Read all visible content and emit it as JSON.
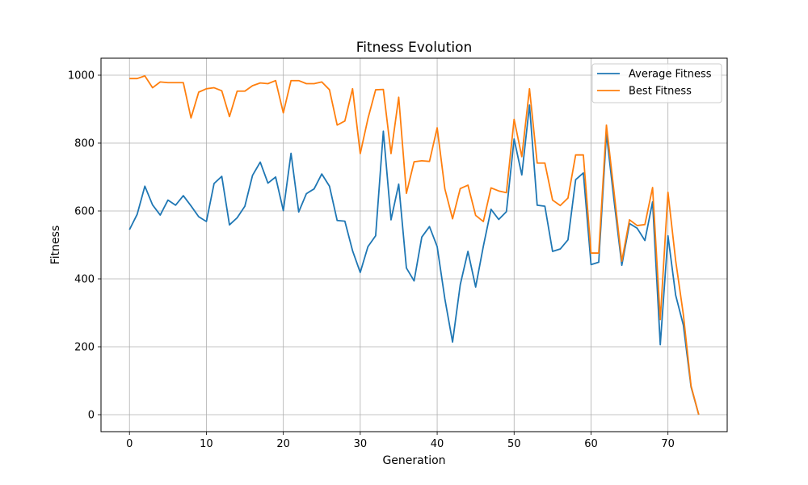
{
  "chart_data": {
    "type": "line",
    "title": "Fitness Evolution",
    "xlabel": "Generation",
    "ylabel": "Fitness",
    "xlim": [
      -3.7,
      77.7
    ],
    "ylim": [
      -50,
      1050
    ],
    "xticks": [
      0,
      10,
      20,
      30,
      40,
      50,
      60,
      70
    ],
    "yticks": [
      0,
      200,
      400,
      600,
      800,
      1000
    ],
    "grid": true,
    "legend_position": "top-right",
    "x": [
      0,
      1,
      2,
      3,
      4,
      5,
      6,
      7,
      8,
      9,
      10,
      11,
      12,
      13,
      14,
      15,
      16,
      17,
      18,
      19,
      20,
      21,
      22,
      23,
      24,
      25,
      26,
      27,
      28,
      29,
      30,
      31,
      32,
      33,
      34,
      35,
      36,
      37,
      38,
      39,
      40,
      41,
      42,
      43,
      44,
      45,
      46,
      47,
      48,
      49,
      50,
      51,
      52,
      53,
      54,
      55,
      56,
      57,
      58,
      59,
      60,
      61,
      62,
      63,
      64,
      65,
      66,
      67,
      68,
      69,
      70,
      71,
      72,
      73,
      74
    ],
    "series": [
      {
        "name": "Average Fitness",
        "color": "#1f77b4",
        "values": [
          545,
          590,
          673,
          618,
          588,
          632,
          617,
          645,
          615,
          583,
          569,
          681,
          702,
          559,
          580,
          614,
          705,
          744,
          682,
          700,
          601,
          770,
          597,
          651,
          665,
          709,
          673,
          572,
          570,
          483,
          419,
          495,
          527,
          835,
          574,
          679,
          432,
          394,
          523,
          554,
          495,
          341,
          214,
          383,
          481,
          376,
          496,
          605,
          575,
          598,
          812,
          706,
          912,
          617,
          614,
          481,
          488,
          515,
          692,
          712,
          442,
          449,
          828,
          629,
          440,
          563,
          549,
          513,
          627,
          206,
          527,
          352,
          264,
          82,
          0
        ]
      },
      {
        "name": "Best Fitness",
        "color": "#ff7f0e",
        "values": [
          990,
          990,
          998,
          963,
          980,
          978,
          978,
          978,
          874,
          950,
          960,
          963,
          954,
          878,
          953,
          953,
          969,
          977,
          975,
          984,
          889,
          984,
          984,
          975,
          975,
          980,
          957,
          853,
          865,
          960,
          769,
          872,
          957,
          958,
          769,
          935,
          652,
          745,
          748,
          746,
          845,
          665,
          577,
          666,
          676,
          587,
          569,
          668,
          659,
          654,
          870,
          760,
          960,
          741,
          741,
          632,
          616,
          638,
          765,
          765,
          476,
          476,
          853,
          654,
          452,
          574,
          557,
          560,
          669,
          280,
          655,
          454,
          295,
          85,
          0
        ]
      }
    ]
  }
}
